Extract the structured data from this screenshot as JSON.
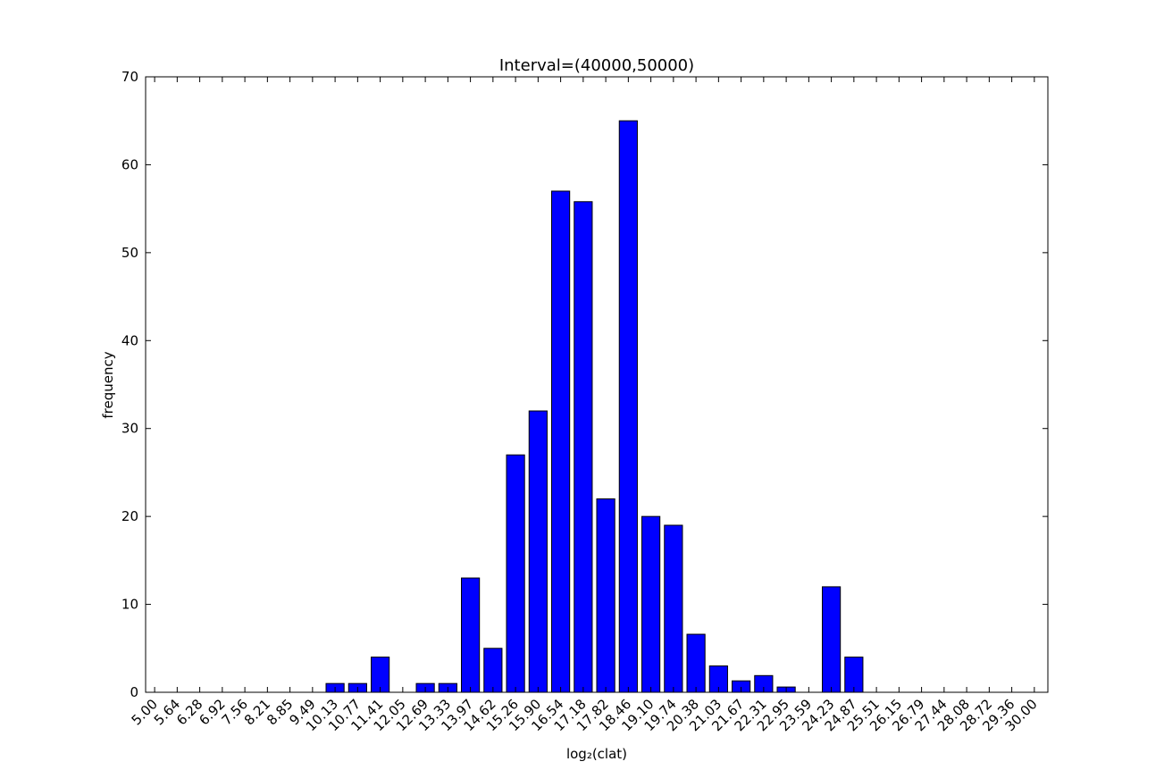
{
  "chart_data": {
    "type": "bar",
    "title": "Interval=(40000,50000)",
    "x_label": "log₂(clat)",
    "y_label": "frequency",
    "categories": [
      "5.00",
      "5.64",
      "6.28",
      "6.92",
      "7.56",
      "8.21",
      "8.85",
      "9.49",
      "10.13",
      "10.77",
      "11.41",
      "12.05",
      "12.69",
      "13.33",
      "13.97",
      "14.62",
      "15.26",
      "15.90",
      "16.54",
      "17.18",
      "17.82",
      "18.46",
      "19.10",
      "19.74",
      "20.38",
      "21.03",
      "21.67",
      "22.31",
      "22.95",
      "23.59",
      "24.23",
      "24.87",
      "25.51",
      "26.15",
      "26.79",
      "27.44",
      "28.08",
      "28.72",
      "29.36",
      "30.00"
    ],
    "values": [
      0,
      0,
      0,
      0,
      0,
      0,
      0,
      0,
      1,
      1,
      4,
      0,
      1,
      1,
      13,
      5,
      27,
      32,
      57,
      55.8,
      22,
      65,
      20,
      19,
      6.6,
      3,
      1.3,
      1.9,
      0.6,
      0,
      12,
      4,
      0,
      0,
      0,
      0,
      0,
      0,
      0,
      0
    ],
    "color": "#0000ff",
    "ylim": [
      0,
      70
    ],
    "yticks": [
      0,
      10,
      20,
      30,
      40,
      50,
      60,
      70
    ],
    "grid": false
  }
}
